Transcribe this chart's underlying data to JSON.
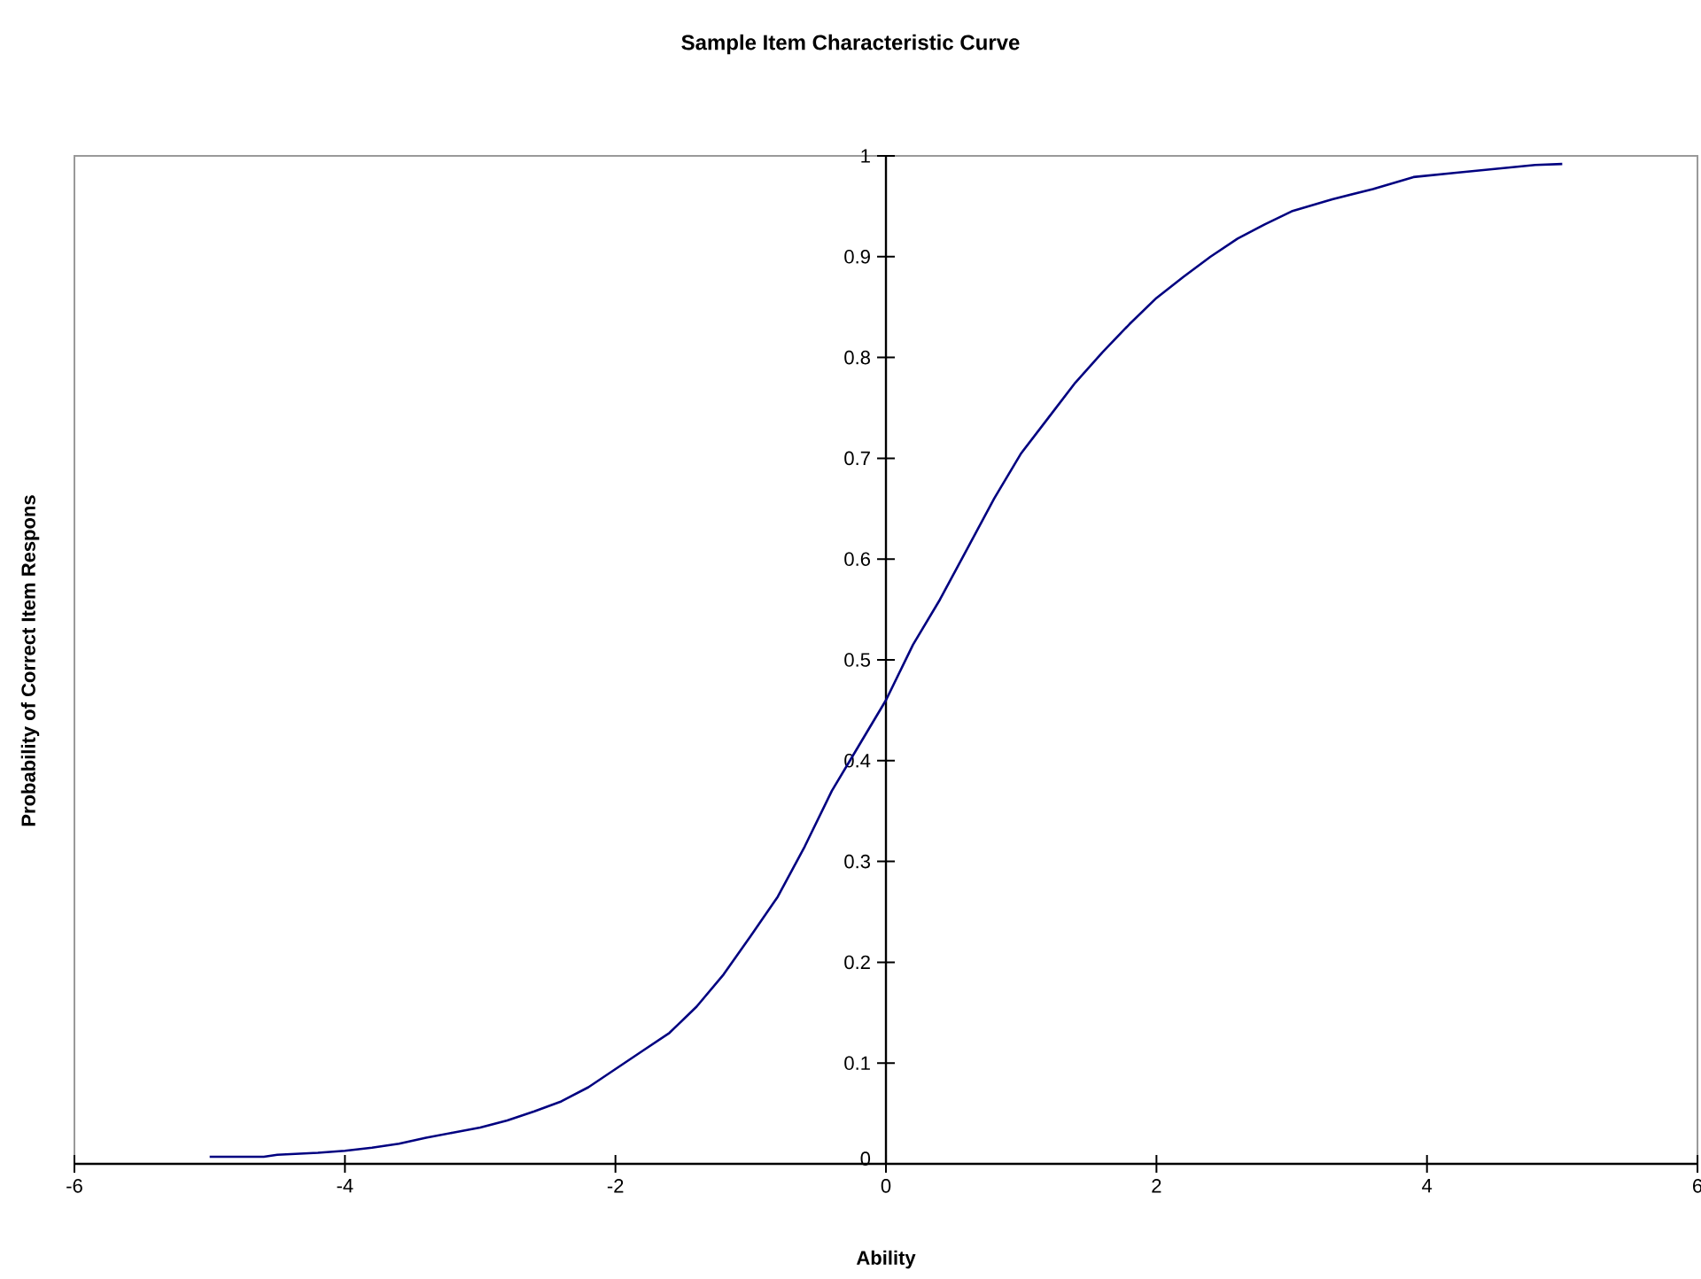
{
  "chart_data": {
    "type": "line",
    "title": "Sample Item Characteristic Curve",
    "xlabel": "Ability",
    "ylabel": "Probability of Correct Item Respons",
    "series": [
      {
        "color": "#000080",
        "x": [
          -5,
          -4.6,
          -4.5,
          -4.2,
          -4,
          -3.8,
          -3.6,
          -3.4,
          -3.2,
          -3,
          -2.8,
          -2.6,
          -2.4,
          -2.2,
          -2,
          -1.8,
          -1.6,
          -1.4,
          -1.2,
          -1,
          -0.8,
          -0.6,
          -0.4,
          -0.2,
          0,
          0.2,
          0.4,
          0.6,
          0.8,
          1,
          1.2,
          1.4,
          1.6,
          1.8,
          2,
          2.2,
          2.4,
          2.6,
          2.8,
          3,
          3.3,
          3.6,
          3.9,
          4.2,
          4.5,
          4.8,
          5
        ],
        "values": [
          0.007,
          0.007,
          0.009,
          0.011,
          0.013,
          0.016,
          0.02,
          0.026,
          0.031,
          0.036,
          0.043,
          0.052,
          0.062,
          0.076,
          0.094,
          0.112,
          0.13,
          0.156,
          0.188,
          0.226,
          0.265,
          0.315,
          0.37,
          0.415,
          0.46,
          0.515,
          0.56,
          0.61,
          0.66,
          0.705,
          0.74,
          0.775,
          0.805,
          0.833,
          0.859,
          0.88,
          0.9,
          0.918,
          0.932,
          0.945,
          0.957,
          0.967,
          0.979,
          0.983,
          0.987,
          0.991,
          0.992
        ]
      }
    ],
    "xlim": [
      -6,
      6
    ],
    "ylim": [
      0,
      1
    ],
    "xticks": [
      -6,
      -4,
      -2,
      0,
      2,
      4,
      6
    ],
    "yticks": [
      0,
      0.1,
      0.2,
      0.3,
      0.4,
      0.5,
      0.6,
      0.7,
      0.8,
      0.9,
      1
    ],
    "grid": false,
    "marker": "none",
    "line_style": "solid"
  }
}
